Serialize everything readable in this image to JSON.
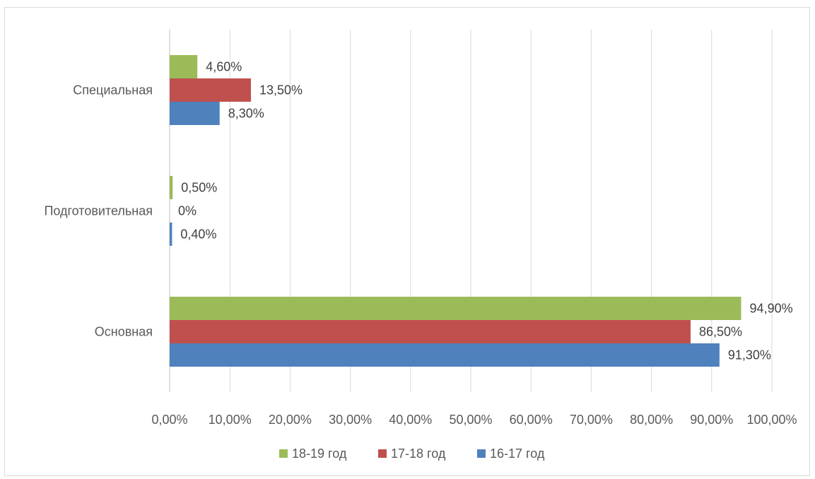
{
  "chart_data": {
    "type": "bar",
    "orientation": "horizontal",
    "categories": [
      "Основная",
      "Подготовительная",
      "Специальная"
    ],
    "series": [
      {
        "name": "16-17 год",
        "color": "#4f81bd",
        "values": [
          91.3,
          0.4,
          8.3
        ],
        "labels": [
          "91,30%",
          "0,40%",
          "8,30%"
        ]
      },
      {
        "name": "17-18 год",
        "color": "#c0504d",
        "values": [
          86.5,
          0,
          13.5
        ],
        "labels": [
          "86,50%",
          "0%",
          "13,50%"
        ]
      },
      {
        "name": "18-19 год",
        "color": "#9bbb59",
        "values": [
          94.9,
          0.5,
          4.6
        ],
        "labels": [
          "94,90%",
          "0,50%",
          "4,60%"
        ]
      }
    ],
    "xlim": [
      0,
      100
    ],
    "xticks": [
      0,
      10,
      20,
      30,
      40,
      50,
      60,
      70,
      80,
      90,
      100
    ],
    "xtick_labels": [
      "0,00%",
      "10,00%",
      "20,00%",
      "30,00%",
      "40,00%",
      "50,00%",
      "60,00%",
      "70,00%",
      "80,00%",
      "90,00%",
      "100,00%"
    ],
    "legend_order": [
      "18-19 год",
      "17-18 год",
      "16-17 год"
    ],
    "legend_position": "bottom",
    "grid": "vertical"
  }
}
